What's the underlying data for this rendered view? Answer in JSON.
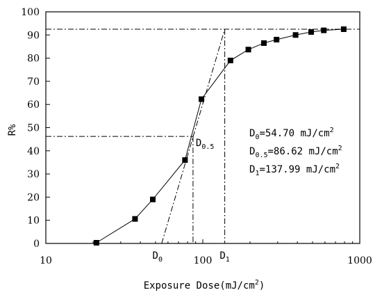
{
  "chart_data": {
    "type": "scatter",
    "xlabel": {
      "main": "Exposure Dose(mJ/cm",
      "sup": "2",
      "tail": ")"
    },
    "ylabel": "R%",
    "x_scale": "log",
    "xlim": [
      10,
      1000
    ],
    "ylim": [
      0,
      100
    ],
    "xticks": [
      {
        "value": 10,
        "label": "10"
      },
      {
        "value": 100,
        "label": "100"
      },
      {
        "value": 1000,
        "label": "1000"
      }
    ],
    "yticks": [
      0,
      10,
      20,
      30,
      40,
      50,
      60,
      70,
      80,
      90,
      100
    ],
    "ytick_labels": [
      "0",
      "10",
      "20",
      "30",
      "40",
      "50",
      "60",
      "70",
      "80",
      "90",
      "100"
    ],
    "series": [
      {
        "x": [
          21,
          37,
          48,
          77,
          98,
          150,
          195,
          245,
          295,
          390,
          490,
          590,
          790
        ],
        "y": [
          0.3,
          10.6,
          19,
          36,
          62.3,
          79,
          83.7,
          86.5,
          88,
          90,
          91.3,
          92,
          92.5
        ],
        "color": "#000000",
        "marker": "square"
      }
    ],
    "reference_lines": {
      "tangent_line": {
        "x": [
          54.7,
          137.99
        ],
        "y": [
          0,
          92.5
        ]
      },
      "top_level": 92.5,
      "half_level": 46.2,
      "half_dose": 86.62,
      "d1_dose": 137.99
    },
    "markers": {
      "d0": {
        "base": "D",
        "sub": "0",
        "x": 54.7
      },
      "d1": {
        "base": "D",
        "sub": "1",
        "x": 137.99
      },
      "d05": {
        "base": "D",
        "sub": "0.5",
        "x": 86.62,
        "y": 46.2
      }
    },
    "annotations": [
      {
        "base": "D",
        "sub": "0",
        "rest": "=54.70 mJ/cm",
        "sup": "2"
      },
      {
        "base": "D",
        "sub": "0.5",
        "rest": "=86.62 mJ/cm",
        "sup": "2"
      },
      {
        "base": "D",
        "sub": "1",
        "rest": "=137.99 mJ/cm",
        "sup": "2"
      }
    ],
    "grid": false,
    "legend": "none"
  }
}
